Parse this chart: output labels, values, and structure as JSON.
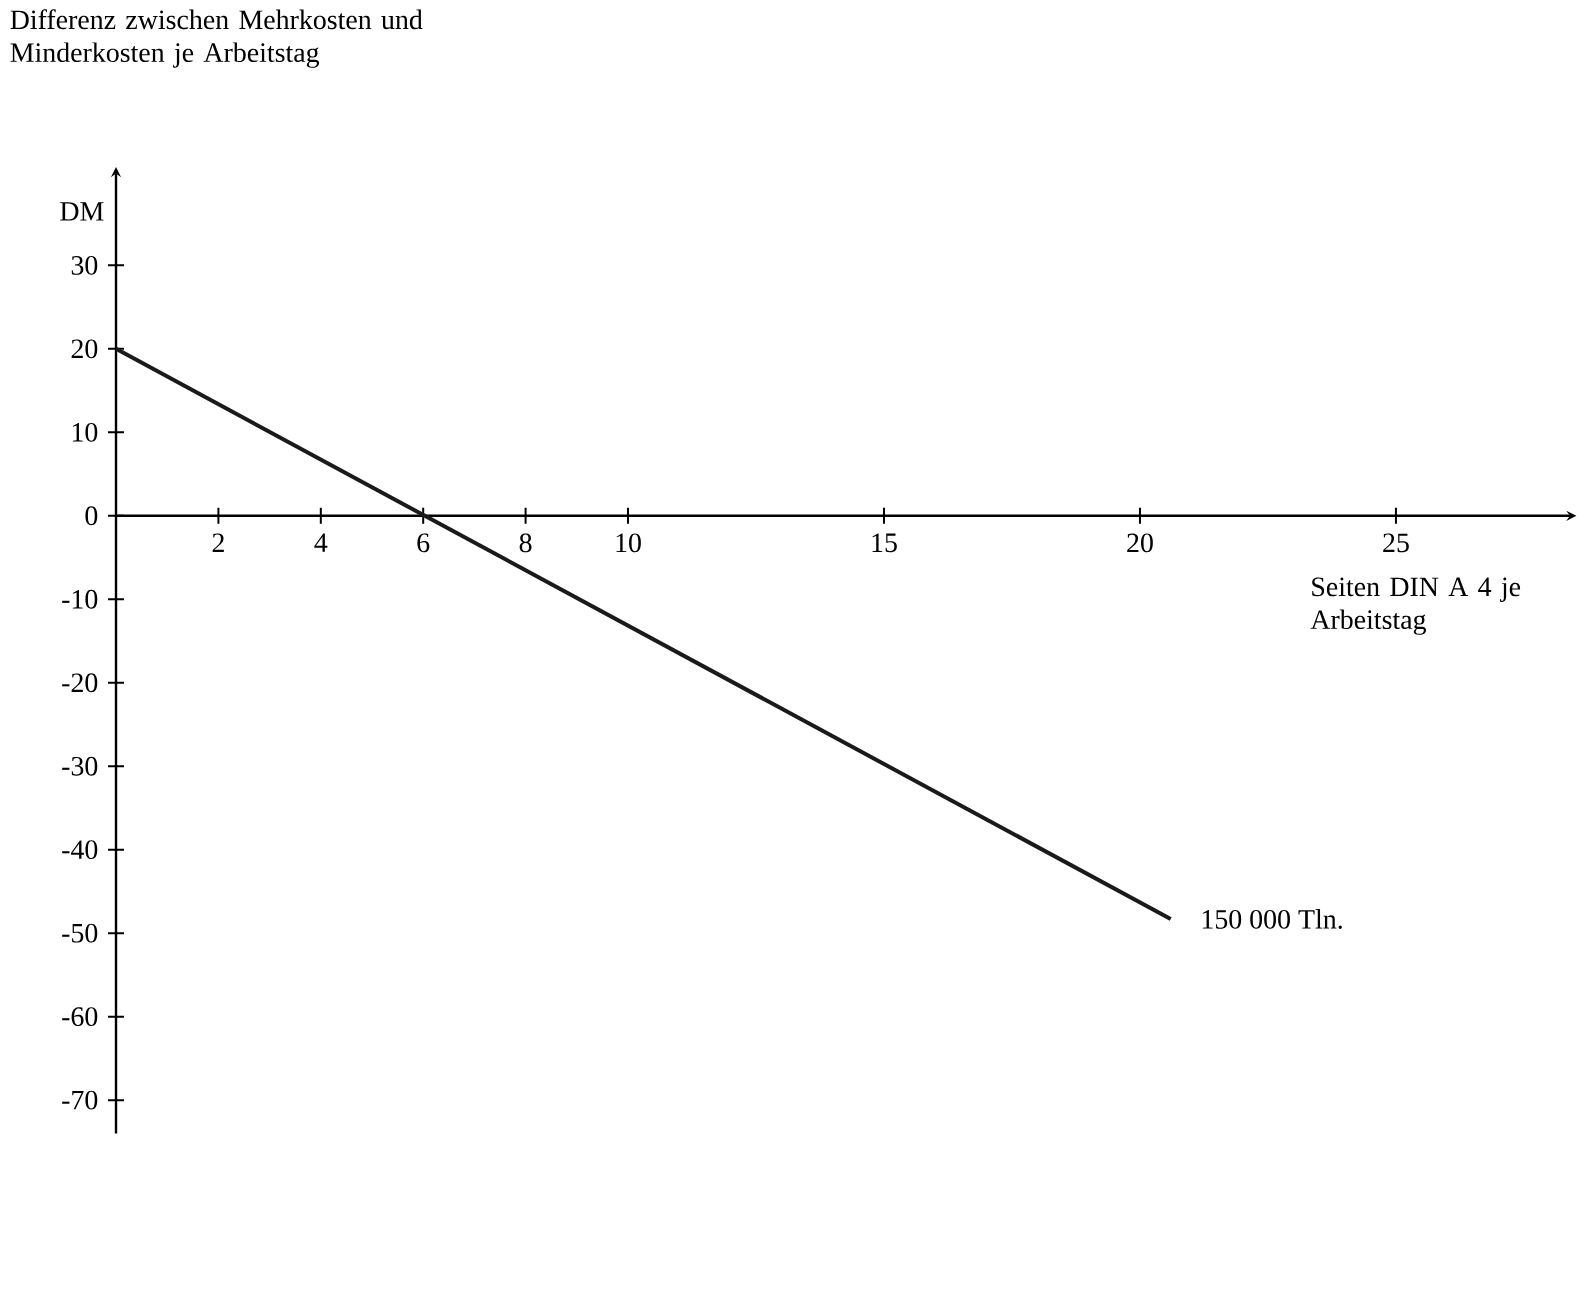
{
  "chart_data": {
    "type": "line",
    "xlabel": "Seiten DIN A 4 je Arbeitstag",
    "ylabel": "Differenz zwischen Mehrkosten und Minderkosten je Arbeitstag",
    "annotations": [
      "DM"
    ],
    "xlim": [
      0,
      28.4
    ],
    "ylim": [
      -74,
      41
    ],
    "xticks": [
      2,
      4,
      6,
      8,
      10,
      15,
      20,
      25
    ],
    "yticks": [
      -70,
      -60,
      -50,
      -40,
      -30,
      -20,
      -10,
      0,
      10,
      20,
      30
    ],
    "marker": "none",
    "line_style": "solid",
    "series": [
      {
        "name": "150 000 Tln.",
        "color": "#1a1a1a",
        "x": [
          0,
          20.6
        ],
        "values": [
          20,
          -48.3
        ]
      }
    ]
  }
}
